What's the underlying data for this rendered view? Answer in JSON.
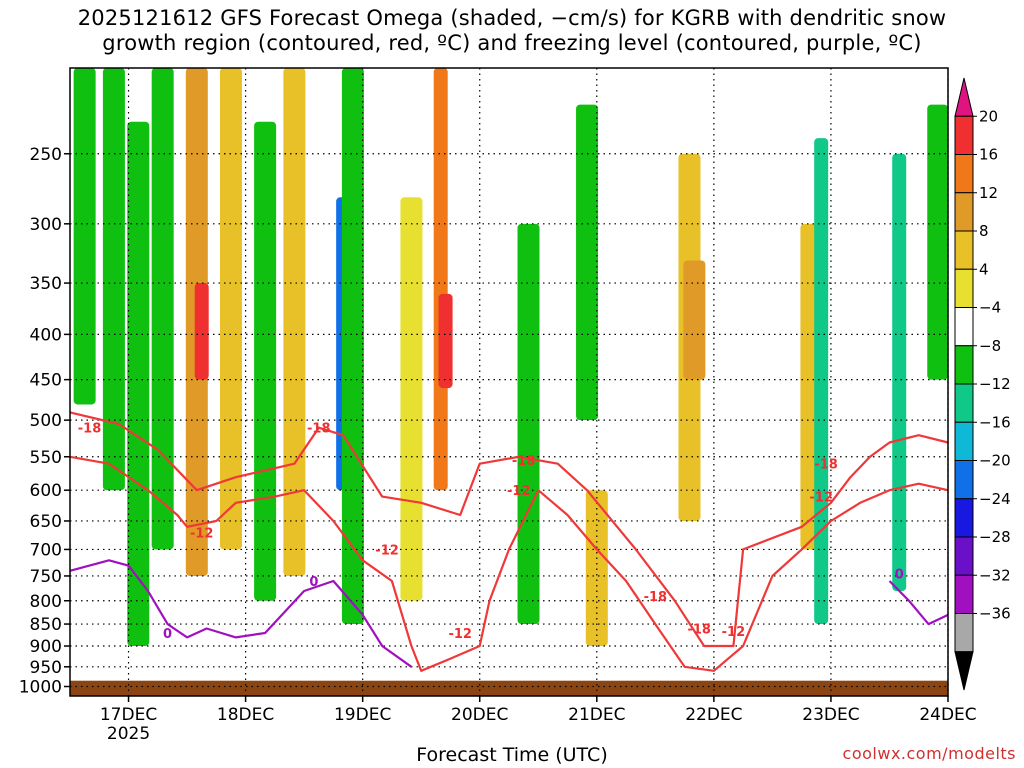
{
  "title_line1": "2025121612 GFS Forecast Omega (shaded, −cm/s) for KGRB with dendritic snow",
  "title_line2": "growth region (contoured, red, ºC) and freezing level (contoured, purple, ºC)",
  "xlabel": "Forecast Time (UTC)",
  "credit": "coolwx.com/modelts",
  "chart_data": {
    "type": "heatmap",
    "title": "2025121612 GFS Forecast Omega (shaded, −cm/s) for KGRB with dendritic snow growth region (contoured, red, ºC) and freezing level (contoured, purple, ºC)",
    "xlabel": "Forecast Time (UTC)",
    "ylabel": "",
    "y_scale": "log-pressure (hPa), inverted",
    "ylim": [
      1025,
      200
    ],
    "x_range": [
      "2025-12-16 12Z",
      "2025-12-24 00Z"
    ],
    "y_ticks": [
      250,
      300,
      350,
      400,
      450,
      500,
      550,
      600,
      650,
      700,
      750,
      800,
      850,
      900,
      950,
      1000
    ],
    "x_ticks": [
      {
        "time": "2025-12-17 00Z",
        "label": "17DEC",
        "sublabel": "2025"
      },
      {
        "time": "2025-12-18 00Z",
        "label": "18DEC",
        "sublabel": ""
      },
      {
        "time": "2025-12-19 00Z",
        "label": "19DEC",
        "sublabel": ""
      },
      {
        "time": "2025-12-20 00Z",
        "label": "20DEC",
        "sublabel": ""
      },
      {
        "time": "2025-12-21 00Z",
        "label": "21DEC",
        "sublabel": ""
      },
      {
        "time": "2025-12-22 00Z",
        "label": "22DEC",
        "sublabel": ""
      },
      {
        "time": "2025-12-23 00Z",
        "label": "23DEC",
        "sublabel": ""
      },
      {
        "time": "2025-12-24 00Z",
        "label": "24DEC",
        "sublabel": ""
      }
    ],
    "grid": true,
    "colorbar": {
      "labels": [
        "20",
        "16",
        "12",
        "8",
        "4",
        "−4",
        "−8",
        "−12",
        "−16",
        "−20",
        "−24",
        "−28",
        "−32",
        "−36"
      ],
      "colors": [
        "#e01480",
        "#f03030",
        "#f07818",
        "#e09a28",
        "#e8c028",
        "#e8e030",
        "#ffffff",
        "#10c010",
        "#10c888",
        "#10b8d8",
        "#1070e8",
        "#1818e0",
        "#6a10c8",
        "#a010c0",
        "#a8a8a8",
        "#000000"
      ]
    },
    "omega_bands": [
      {
        "time": "2025-12-16 15Z",
        "top_hpa": 200,
        "bottom_hpa": 480,
        "omega": -8
      },
      {
        "time": "2025-12-16 21Z",
        "top_hpa": 200,
        "bottom_hpa": 600,
        "omega": -8
      },
      {
        "time": "2025-12-17 02Z",
        "top_hpa": 230,
        "bottom_hpa": 900,
        "omega": -8
      },
      {
        "time": "2025-12-17 07Z",
        "top_hpa": 200,
        "bottom_hpa": 700,
        "omega": -8
      },
      {
        "time": "2025-12-17 14Z",
        "top_hpa": 200,
        "bottom_hpa": 750,
        "omega": 10
      },
      {
        "time": "2025-12-17 15Z",
        "top_hpa": 350,
        "bottom_hpa": 450,
        "omega": 18
      },
      {
        "time": "2025-12-17 21Z",
        "top_hpa": 200,
        "bottom_hpa": 700,
        "omega": 6
      },
      {
        "time": "2025-12-18 04Z",
        "top_hpa": 230,
        "bottom_hpa": 800,
        "omega": -8
      },
      {
        "time": "2025-12-18 10Z",
        "top_hpa": 200,
        "bottom_hpa": 750,
        "omega": 6
      },
      {
        "time": "2025-12-18 20Z",
        "top_hpa": 280,
        "bottom_hpa": 600,
        "omega": -20
      },
      {
        "time": "2025-12-18 22Z",
        "top_hpa": 200,
        "bottom_hpa": 850,
        "omega": -8
      },
      {
        "time": "2025-12-19 10Z",
        "top_hpa": 280,
        "bottom_hpa": 800,
        "omega": 4
      },
      {
        "time": "2025-12-19 16Z",
        "top_hpa": 200,
        "bottom_hpa": 600,
        "omega": 14
      },
      {
        "time": "2025-12-19 17Z",
        "top_hpa": 360,
        "bottom_hpa": 460,
        "omega": 18
      },
      {
        "time": "2025-12-20 10Z",
        "top_hpa": 300,
        "bottom_hpa": 850,
        "omega": -8
      },
      {
        "time": "2025-12-20 22Z",
        "top_hpa": 220,
        "bottom_hpa": 500,
        "omega": -8
      },
      {
        "time": "2025-12-21 00Z",
        "top_hpa": 600,
        "bottom_hpa": 900,
        "omega": 6
      },
      {
        "time": "2025-12-21 19Z",
        "top_hpa": 250,
        "bottom_hpa": 650,
        "omega": 6
      },
      {
        "time": "2025-12-21 20Z",
        "top_hpa": 330,
        "bottom_hpa": 450,
        "omega": 9
      },
      {
        "time": "2025-12-22 20Z",
        "top_hpa": 300,
        "bottom_hpa": 700,
        "omega": 5
      },
      {
        "time": "2025-12-22 22Z",
        "top_hpa": 240,
        "bottom_hpa": 850,
        "omega": -12
      },
      {
        "time": "2025-12-23 14Z",
        "top_hpa": 250,
        "bottom_hpa": 780,
        "omega": -12
      },
      {
        "time": "2025-12-23 22Z",
        "top_hpa": 220,
        "bottom_hpa": 450,
        "omega": -8
      }
    ],
    "dgz_contours": [
      {
        "label": "-18",
        "points": [
          [
            "2025-12-16 12Z",
            490
          ],
          [
            "2025-12-16 22Z",
            505
          ],
          [
            "2025-12-17 06Z",
            540
          ],
          [
            "2025-12-17 14Z",
            600
          ],
          [
            "2025-12-17 22Z",
            580
          ],
          [
            "2025-12-18 10Z",
            560
          ],
          [
            "2025-12-18 15Z",
            510
          ],
          [
            "2025-12-18 20Z",
            520
          ],
          [
            "2025-12-19 04Z",
            610
          ],
          [
            "2025-12-19 12Z",
            620
          ],
          [
            "2025-12-19 20Z",
            640
          ],
          [
            "2025-12-20 00Z",
            560
          ],
          [
            "2025-12-20 08Z",
            550
          ],
          [
            "2025-12-20 16Z",
            560
          ],
          [
            "2025-12-20 22Z",
            600
          ],
          [
            "2025-12-21 08Z",
            700
          ],
          [
            "2025-12-21 16Z",
            800
          ],
          [
            "2025-12-21 22Z",
            900
          ],
          [
            "2025-12-22 04Z",
            900
          ],
          [
            "2025-12-22 06Z",
            700
          ],
          [
            "2025-12-22 18Z",
            660
          ],
          [
            "2025-12-23 00Z",
            620
          ],
          [
            "2025-12-23 04Z",
            580
          ],
          [
            "2025-12-23 08Z",
            550
          ],
          [
            "2025-12-23 12Z",
            530
          ],
          [
            "2025-12-23 18Z",
            520
          ],
          [
            "2025-12-24 00Z",
            530
          ]
        ]
      },
      {
        "label": "-12",
        "points": [
          [
            "2025-12-16 12Z",
            550
          ],
          [
            "2025-12-16 20Z",
            560
          ],
          [
            "2025-12-17 04Z",
            600
          ],
          [
            "2025-12-17 10Z",
            640
          ],
          [
            "2025-12-17 12Z",
            660
          ],
          [
            "2025-12-17 18Z",
            650
          ],
          [
            "2025-12-17 22Z",
            620
          ],
          [
            "2025-12-18 06Z",
            610
          ],
          [
            "2025-12-18 12Z",
            600
          ],
          [
            "2025-12-18 18Z",
            650
          ],
          [
            "2025-12-19 00Z",
            720
          ],
          [
            "2025-12-19 06Z",
            760
          ],
          [
            "2025-12-19 10Z",
            900
          ],
          [
            "2025-12-19 12Z",
            960
          ],
          [
            "2025-12-19 18Z",
            930
          ],
          [
            "2025-12-20 00Z",
            900
          ],
          [
            "2025-12-20 02Z",
            800
          ],
          [
            "2025-12-20 06Z",
            700
          ],
          [
            "2025-12-20 12Z",
            600
          ],
          [
            "2025-12-20 18Z",
            640
          ],
          [
            "2025-12-21 00Z",
            700
          ],
          [
            "2025-12-21 06Z",
            760
          ],
          [
            "2025-12-21 12Z",
            850
          ],
          [
            "2025-12-21 18Z",
            950
          ],
          [
            "2025-12-22 00Z",
            960
          ],
          [
            "2025-12-22 06Z",
            900
          ],
          [
            "2025-12-22 12Z",
            750
          ],
          [
            "2025-12-22 18Z",
            700
          ],
          [
            "2025-12-23 00Z",
            650
          ],
          [
            "2025-12-23 06Z",
            620
          ],
          [
            "2025-12-23 12Z",
            600
          ],
          [
            "2025-12-23 18Z",
            590
          ],
          [
            "2025-12-24 00Z",
            600
          ]
        ]
      }
    ],
    "freezing_contours": [
      {
        "label": "0",
        "points": [
          [
            "2025-12-16 12Z",
            740
          ],
          [
            "2025-12-16 20Z",
            720
          ],
          [
            "2025-12-17 00Z",
            730
          ],
          [
            "2025-12-17 04Z",
            780
          ],
          [
            "2025-12-17 08Z",
            850
          ],
          [
            "2025-12-17 12Z",
            880
          ],
          [
            "2025-12-17 16Z",
            860
          ],
          [
            "2025-12-17 22Z",
            880
          ],
          [
            "2025-12-18 04Z",
            870
          ],
          [
            "2025-12-18 12Z",
            780
          ],
          [
            "2025-12-18 18Z",
            760
          ],
          [
            "2025-12-19 00Z",
            830
          ],
          [
            "2025-12-19 04Z",
            900
          ],
          [
            "2025-12-19 10Z",
            950
          ]
        ]
      },
      {
        "label": "0",
        "points": [
          [
            "2025-12-23 12Z",
            760
          ],
          [
            "2025-12-23 16Z",
            800
          ],
          [
            "2025-12-23 20Z",
            850
          ],
          [
            "2025-12-24 00Z",
            830
          ]
        ]
      }
    ],
    "contour_labels": [
      {
        "text": "-18",
        "time": "2025-12-16 16Z",
        "pressure_hpa": 510,
        "color": "#f03030"
      },
      {
        "text": "-12",
        "time": "2025-12-17 15Z",
        "pressure_hpa": 670,
        "color": "#f03030"
      },
      {
        "text": "-18",
        "time": "2025-12-18 15Z",
        "pressure_hpa": 510,
        "color": "#f03030"
      },
      {
        "text": "-12",
        "time": "2025-12-19 05Z",
        "pressure_hpa": 700,
        "color": "#f03030"
      },
      {
        "text": "-18",
        "time": "2025-12-20 09Z",
        "pressure_hpa": 555,
        "color": "#f03030"
      },
      {
        "text": "-12",
        "time": "2025-12-20 08Z",
        "pressure_hpa": 600,
        "color": "#f03030"
      },
      {
        "text": "-12",
        "time": "2025-12-19 20Z",
        "pressure_hpa": 870,
        "color": "#f03030"
      },
      {
        "text": "-18",
        "time": "2025-12-21 12Z",
        "pressure_hpa": 790,
        "color": "#f03030"
      },
      {
        "text": "-18",
        "time": "2025-12-21 21Z",
        "pressure_hpa": 860,
        "color": "#f03030"
      },
      {
        "text": "-12",
        "time": "2025-12-22 04Z",
        "pressure_hpa": 865,
        "color": "#f03030"
      },
      {
        "text": "-18",
        "time": "2025-12-22 23Z",
        "pressure_hpa": 560,
        "color": "#f03030"
      },
      {
        "text": "-12",
        "time": "2025-12-22 22Z",
        "pressure_hpa": 610,
        "color": "#f03030"
      },
      {
        "text": "0",
        "time": "2025-12-17 08Z",
        "pressure_hpa": 870,
        "color": "#a010c0"
      },
      {
        "text": "0",
        "time": "2025-12-18 14Z",
        "pressure_hpa": 760,
        "color": "#a010c0"
      },
      {
        "text": "0",
        "time": "2025-12-23 14Z",
        "pressure_hpa": 745,
        "color": "#a010c0"
      }
    ]
  }
}
